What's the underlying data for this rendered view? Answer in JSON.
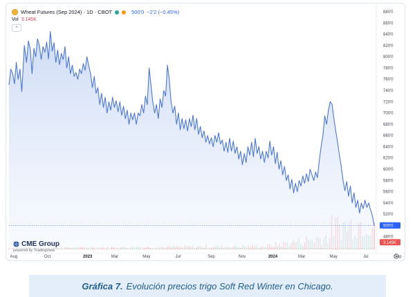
{
  "header": {
    "symbol_title": "Wheat Futures (Sep 2024) · 1D · CBOT",
    "current_price": "500'0",
    "price_change": "−2'2 (−0.45%)",
    "volume_label": "Vol",
    "volume_value": "3.145K"
  },
  "colors": {
    "line": "#4a76d6",
    "area_top": "#c9d8f5",
    "area_bottom": "#f3f7fd",
    "volume_up": "#f2b6b6",
    "volume_down": "#b9d8cf",
    "price_badge": "#2962ff",
    "volume_badge": "#ef5350"
  },
  "icons": {
    "symbol": "wheat-symbol-icon",
    "collapse": "chevron-up-icon",
    "settings": "gear-icon",
    "logo": "cme-globe-icon"
  },
  "chart_data": {
    "type": "line",
    "ylim": [
      460,
      880
    ],
    "y_ticks": [
      "880'0",
      "860'0",
      "840'0",
      "820'0",
      "800'0",
      "780'0",
      "760'0",
      "740'0",
      "720'0",
      "700'0",
      "680'0",
      "660'0",
      "640'0",
      "620'0",
      "600'0",
      "580'0",
      "560'0",
      "540'0",
      "520'0",
      "500'0",
      "480'0"
    ],
    "x_ticks": [
      {
        "label": "Aug",
        "pos": 0.013
      },
      {
        "label": "Oct",
        "pos": 0.105
      },
      {
        "label": "2023",
        "pos": 0.215,
        "bold": true
      },
      {
        "label": "Mar",
        "pos": 0.289
      },
      {
        "label": "May",
        "pos": 0.376
      },
      {
        "label": "Jul",
        "pos": 0.462
      },
      {
        "label": "Sep",
        "pos": 0.553
      },
      {
        "label": "Nov",
        "pos": 0.637
      },
      {
        "label": "2024",
        "pos": 0.721,
        "bold": true
      },
      {
        "label": "Mar",
        "pos": 0.8
      },
      {
        "label": "May",
        "pos": 0.887
      },
      {
        "label": "Jul",
        "pos": 0.975
      },
      {
        "label": "Sep",
        "pos": 1.063
      }
    ],
    "series": [
      {
        "values": [
          [
            0.0,
            750
          ],
          [
            0.005,
            778
          ],
          [
            0.01,
            770
          ],
          [
            0.015,
            752
          ],
          [
            0.02,
            790
          ],
          [
            0.025,
            760
          ],
          [
            0.03,
            778
          ],
          [
            0.035,
            738
          ],
          [
            0.042,
            820
          ],
          [
            0.048,
            790
          ],
          [
            0.053,
            828
          ],
          [
            0.058,
            815
          ],
          [
            0.063,
            770
          ],
          [
            0.068,
            815
          ],
          [
            0.073,
            800
          ],
          [
            0.078,
            832
          ],
          [
            0.083,
            820
          ],
          [
            0.088,
            795
          ],
          [
            0.093,
            818
          ],
          [
            0.098,
            808
          ],
          [
            0.103,
            826
          ],
          [
            0.108,
            796
          ],
          [
            0.113,
            845
          ],
          [
            0.118,
            810
          ],
          [
            0.123,
            825
          ],
          [
            0.128,
            790
          ],
          [
            0.133,
            812
          ],
          [
            0.138,
            786
          ],
          [
            0.143,
            806
          ],
          [
            0.148,
            795
          ],
          [
            0.153,
            818
          ],
          [
            0.158,
            780
          ],
          [
            0.163,
            800
          ],
          [
            0.168,
            770
          ],
          [
            0.173,
            785
          ],
          [
            0.178,
            765
          ],
          [
            0.183,
            772
          ],
          [
            0.188,
            760
          ],
          [
            0.193,
            778
          ],
          [
            0.198,
            770
          ],
          [
            0.203,
            788
          ],
          [
            0.208,
            776
          ],
          [
            0.213,
            800
          ],
          [
            0.218,
            784
          ],
          [
            0.223,
            770
          ],
          [
            0.228,
            745
          ],
          [
            0.233,
            765
          ],
          [
            0.238,
            735
          ],
          [
            0.243,
            745
          ],
          [
            0.248,
            715
          ],
          [
            0.253,
            735
          ],
          [
            0.258,
            710
          ],
          [
            0.263,
            728
          ],
          [
            0.268,
            700
          ],
          [
            0.273,
            720
          ],
          [
            0.278,
            705
          ],
          [
            0.283,
            728
          ],
          [
            0.288,
            710
          ],
          [
            0.293,
            722
          ],
          [
            0.298,
            702
          ],
          [
            0.303,
            720
          ],
          [
            0.308,
            696
          ],
          [
            0.313,
            712
          ],
          [
            0.318,
            690
          ],
          [
            0.323,
            705
          ],
          [
            0.328,
            680
          ],
          [
            0.333,
            700
          ],
          [
            0.338,
            688
          ],
          [
            0.343,
            700
          ],
          [
            0.348,
            680
          ],
          [
            0.353,
            700
          ],
          [
            0.358,
            695
          ],
          [
            0.363,
            715
          ],
          [
            0.368,
            700
          ],
          [
            0.373,
            730
          ],
          [
            0.378,
            715
          ],
          [
            0.383,
            780
          ],
          [
            0.388,
            750
          ],
          [
            0.393,
            720
          ],
          [
            0.398,
            700
          ],
          [
            0.403,
            715
          ],
          [
            0.408,
            690
          ],
          [
            0.413,
            725
          ],
          [
            0.418,
            710
          ],
          [
            0.423,
            740
          ],
          [
            0.428,
            730
          ],
          [
            0.433,
            785
          ],
          [
            0.438,
            760
          ],
          [
            0.443,
            720
          ],
          [
            0.448,
            700
          ],
          [
            0.453,
            712
          ],
          [
            0.458,
            680
          ],
          [
            0.463,
            700
          ],
          [
            0.468,
            670
          ],
          [
            0.473,
            690
          ],
          [
            0.478,
            672
          ],
          [
            0.483,
            688
          ],
          [
            0.488,
            668
          ],
          [
            0.493,
            690
          ],
          [
            0.498,
            676
          ],
          [
            0.503,
            696
          ],
          [
            0.508,
            670
          ],
          [
            0.513,
            690
          ],
          [
            0.518,
            662
          ],
          [
            0.523,
            676
          ],
          [
            0.528,
            656
          ],
          [
            0.533,
            668
          ],
          [
            0.538,
            648
          ],
          [
            0.543,
            660
          ],
          [
            0.548,
            645
          ],
          [
            0.553,
            656
          ],
          [
            0.558,
            640
          ],
          [
            0.563,
            660
          ],
          [
            0.568,
            648
          ],
          [
            0.573,
            665
          ],
          [
            0.578,
            645
          ],
          [
            0.583,
            652
          ],
          [
            0.588,
            632
          ],
          [
            0.593,
            648
          ],
          [
            0.598,
            630
          ],
          [
            0.603,
            655
          ],
          [
            0.608,
            632
          ],
          [
            0.613,
            650
          ],
          [
            0.618,
            628
          ],
          [
            0.623,
            640
          ],
          [
            0.628,
            618
          ],
          [
            0.633,
            632
          ],
          [
            0.638,
            608
          ],
          [
            0.643,
            628
          ],
          [
            0.648,
            612
          ],
          [
            0.653,
            640
          ],
          [
            0.658,
            625
          ],
          [
            0.663,
            648
          ],
          [
            0.668,
            622
          ],
          [
            0.673,
            655
          ],
          [
            0.678,
            628
          ],
          [
            0.683,
            640
          ],
          [
            0.688,
            618
          ],
          [
            0.693,
            632
          ],
          [
            0.698,
            612
          ],
          [
            0.703,
            632
          ],
          [
            0.708,
            620
          ],
          [
            0.713,
            650
          ],
          [
            0.718,
            625
          ],
          [
            0.723,
            640
          ],
          [
            0.728,
            610
          ],
          [
            0.733,
            630
          ],
          [
            0.738,
            600
          ],
          [
            0.743,
            615
          ],
          [
            0.748,
            590
          ],
          [
            0.753,
            605
          ],
          [
            0.758,
            580
          ],
          [
            0.763,
            590
          ],
          [
            0.768,
            565
          ],
          [
            0.773,
            582
          ],
          [
            0.778,
            558
          ],
          [
            0.783,
            575
          ],
          [
            0.788,
            560
          ],
          [
            0.793,
            580
          ],
          [
            0.798,
            570
          ],
          [
            0.803,
            588
          ],
          [
            0.808,
            575
          ],
          [
            0.813,
            592
          ],
          [
            0.818,
            578
          ],
          [
            0.823,
            600
          ],
          [
            0.828,
            590
          ],
          [
            0.833,
            580
          ],
          [
            0.838,
            595
          ],
          [
            0.843,
            585
          ],
          [
            0.848,
            615
          ],
          [
            0.853,
            640
          ],
          [
            0.858,
            660
          ],
          [
            0.863,
            695
          ],
          [
            0.868,
            680
          ],
          [
            0.873,
            705
          ],
          [
            0.878,
            720
          ],
          [
            0.883,
            715
          ],
          [
            0.888,
            690
          ],
          [
            0.893,
            668
          ],
          [
            0.898,
            648
          ],
          [
            0.903,
            625
          ],
          [
            0.908,
            605
          ],
          [
            0.913,
            580
          ],
          [
            0.918,
            562
          ],
          [
            0.923,
            578
          ],
          [
            0.928,
            552
          ],
          [
            0.933,
            570
          ],
          [
            0.938,
            540
          ],
          [
            0.943,
            558
          ],
          [
            0.948,
            532
          ],
          [
            0.953,
            545
          ],
          [
            0.958,
            522
          ],
          [
            0.963,
            540
          ],
          [
            0.968,
            530
          ],
          [
            0.973,
            545
          ],
          [
            0.978,
            532
          ],
          [
            0.983,
            540
          ],
          [
            0.988,
            528
          ],
          [
            0.993,
            518
          ],
          [
            0.998,
            500
          ]
        ]
      }
    ],
    "volume": {
      "ymax": 10000,
      "count": 190,
      "note": "volume histogram rises toward 2024 summer; values illustrative-scale"
    },
    "last_value": "500'0",
    "last_volume": "3.145K"
  },
  "logo": {
    "name": "CME Group",
    "subtitle": "powered by TradingView"
  },
  "caption": {
    "label": "Gráfica 7.",
    "text": "Evolución precios trigo Soft Red Winter en Chicago."
  }
}
